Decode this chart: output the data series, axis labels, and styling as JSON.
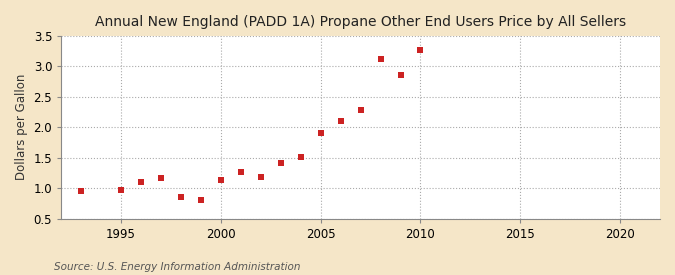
{
  "title": "Annual New England (PADD 1A) Propane Other End Users Price by All Sellers",
  "ylabel": "Dollars per Gallon",
  "source": "Source: U.S. Energy Information Administration",
  "figure_bg": "#f5e6c8",
  "plot_bg": "#ffffff",
  "marker_color": "#cc2222",
  "marker": "s",
  "marker_size": 4,
  "xlim": [
    1992,
    2022
  ],
  "ylim": [
    0.5,
    3.5
  ],
  "xticks": [
    1995,
    2000,
    2005,
    2010,
    2015,
    2020
  ],
  "yticks": [
    0.5,
    1.0,
    1.5,
    2.0,
    2.5,
    3.0,
    3.5
  ],
  "ytick_labels": [
    "0.5",
    "1.0",
    "1.5",
    "2.0",
    "2.5",
    "3.0",
    "3.5"
  ],
  "years": [
    1993,
    1995,
    1996,
    1997,
    1998,
    1999,
    2000,
    2001,
    2002,
    2003,
    2004,
    2005,
    2006,
    2007,
    2008,
    2009,
    2010
  ],
  "values": [
    0.95,
    0.97,
    1.1,
    1.16,
    0.85,
    0.81,
    1.13,
    1.27,
    1.18,
    1.41,
    1.52,
    1.91,
    2.11,
    2.28,
    3.12,
    2.85,
    3.27
  ]
}
